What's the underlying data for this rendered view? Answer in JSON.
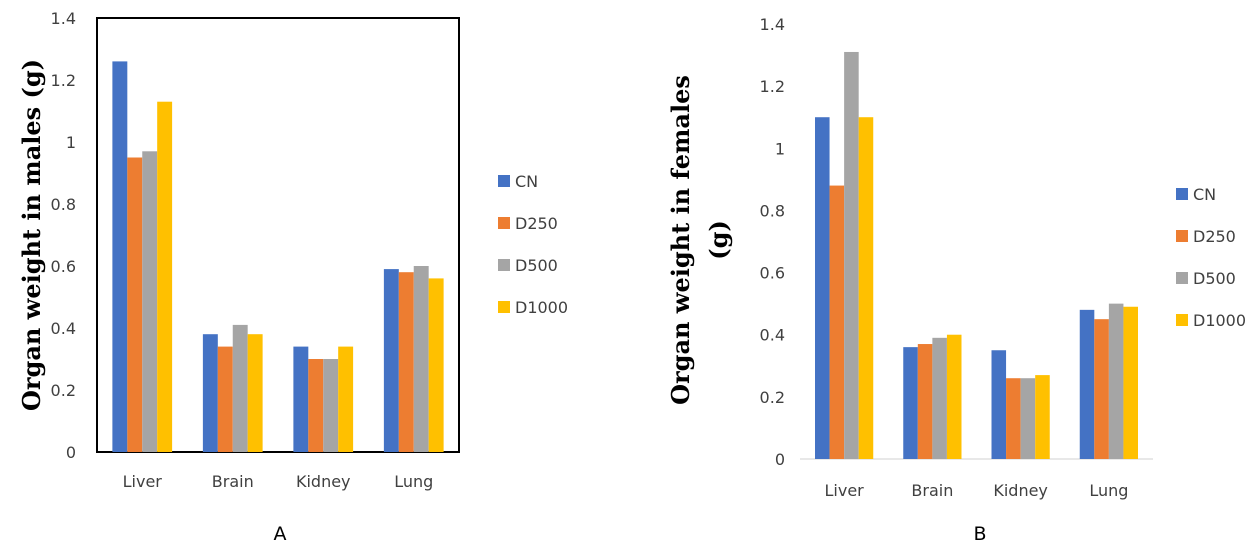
{
  "chart_data": [
    {
      "type": "bar",
      "panel_label": "A",
      "ylabel": "Organ weight in males  (g)",
      "ylabel_lines": [
        "Organ weight in males  (g)"
      ],
      "categories": [
        "Liver",
        "Brain",
        "Kidney",
        "Lung"
      ],
      "series": [
        {
          "name": "CN",
          "color": "#4472C4",
          "values": [
            1.26,
            0.38,
            0.34,
            0.59
          ]
        },
        {
          "name": "D250",
          "color": "#ED7D31",
          "values": [
            0.95,
            0.34,
            0.3,
            0.58
          ]
        },
        {
          "name": "D500",
          "color": "#A5A5A5",
          "values": [
            0.97,
            0.41,
            0.3,
            0.6
          ]
        },
        {
          "name": "D1000",
          "color": "#FFC000",
          "values": [
            1.13,
            0.38,
            0.34,
            0.56
          ]
        }
      ],
      "ylim": [
        0,
        1.4
      ],
      "yticks": [
        "0",
        "0.2",
        "0.4",
        "0.6",
        "0.8",
        "1",
        "1.2",
        "1.4"
      ],
      "grid": false,
      "legend_position": "right"
    },
    {
      "type": "bar",
      "panel_label": "B",
      "ylabel": "Organ weight in females (g)",
      "ylabel_lines": [
        "Organ weight in females",
        "(g)"
      ],
      "categories": [
        "Liver",
        "Brain",
        "Kidney",
        "Lung"
      ],
      "series": [
        {
          "name": "CN",
          "color": "#4472C4",
          "values": [
            1.1,
            0.36,
            0.35,
            0.48
          ]
        },
        {
          "name": "D250",
          "color": "#ED7D31",
          "values": [
            0.88,
            0.37,
            0.26,
            0.45
          ]
        },
        {
          "name": "D500",
          "color": "#A5A5A5",
          "values": [
            1.31,
            0.39,
            0.26,
            0.5
          ]
        },
        {
          "name": "D1000",
          "color": "#FFC000",
          "values": [
            1.1,
            0.4,
            0.27,
            0.49
          ]
        }
      ],
      "ylim": [
        0,
        1.4
      ],
      "yticks": [
        "0",
        "0.2",
        "0.4",
        "0.6",
        "0.8",
        "1",
        "1.2",
        "1.4"
      ],
      "grid": false,
      "legend_position": "right"
    }
  ]
}
